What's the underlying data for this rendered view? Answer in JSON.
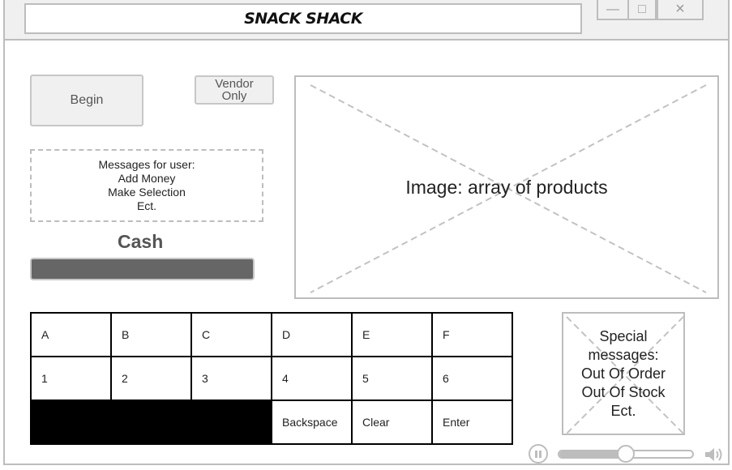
{
  "window": {
    "title": "SNACK SHACK",
    "controls": {
      "minimize": "—",
      "maximize": "□",
      "close": "×"
    }
  },
  "buttons": {
    "begin": "Begin",
    "vendor_line1": "Vendor",
    "vendor_line2": "Only"
  },
  "messages": {
    "lines": [
      "Messages for user:",
      "Add Money",
      "Make Selection",
      "Ect."
    ]
  },
  "image_placeholder": {
    "label": "Image: array of products"
  },
  "cash": {
    "label": "Cash"
  },
  "keypad": {
    "rows": [
      [
        "A",
        "B",
        "C",
        "D",
        "E",
        "F"
      ],
      [
        "1",
        "2",
        "3",
        "4",
        "5",
        "6"
      ],
      [
        "",
        "",
        "",
        "Backspace",
        "Clear",
        "Enter"
      ]
    ]
  },
  "special": {
    "lines": [
      "Special",
      "messages:",
      "Out Of Order",
      "Out Of Stock",
      "Ect."
    ]
  },
  "media": {
    "pause_icon": "pause-icon",
    "speaker_icon": "speaker-icon",
    "volume_level": 0.5
  },
  "colors": {
    "frame": "#bdbdbd",
    "cash_bar": "#666666",
    "keypad_border": "#000000"
  }
}
